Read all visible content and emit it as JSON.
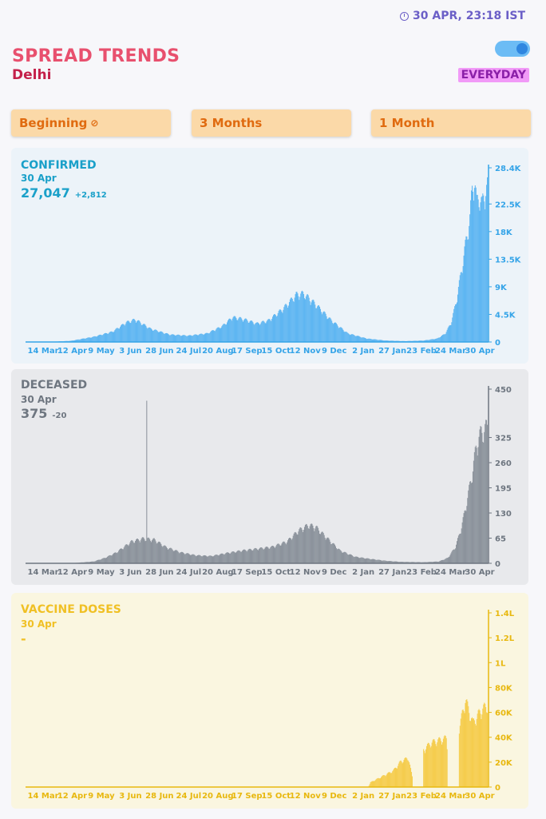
{
  "header": {
    "timestamp": "30 APR, 23:18 IST",
    "title": "SPREAD TRENDS",
    "region": "Delhi",
    "mode_badge": "EVERYDAY"
  },
  "timeframes": [
    {
      "label": "Beginning",
      "selected": true
    },
    {
      "label": "3 Months",
      "selected": false
    },
    {
      "label": "1 Month",
      "selected": false
    }
  ],
  "x_ticks": [
    "14 Mar",
    "12 Apr",
    "9 May",
    "3 Jun",
    "28 Jun",
    "24 Jul",
    "20 Aug",
    "17 Sep",
    "15 Oct",
    "12 Nov",
    "9 Dec",
    "2 Jan",
    "27 Jan",
    "23 Feb",
    "24 Mar",
    "30 Apr"
  ],
  "panels": [
    {
      "key": "confirmed",
      "title": "CONFIRMED",
      "date": "30 Apr",
      "value": "27,047",
      "delta": "+2,812",
      "bg": "#ecf3f9",
      "color": "#5fb6f2",
      "text_color": "#1aa0c9",
      "tick_color": "#35a4e8",
      "y_ticks": [
        [
          "0",
          0
        ],
        [
          "4.5K",
          4500
        ],
        [
          "9K",
          9000
        ],
        [
          "13.5K",
          13500
        ],
        [
          "18K",
          18000
        ],
        [
          "22.5K",
          22500
        ],
        [
          "28.4K",
          28400
        ]
      ],
      "ymax": 28400,
      "keyframes": [
        [
          0,
          0
        ],
        [
          25,
          10
        ],
        [
          55,
          200
        ],
        [
          85,
          900
        ],
        [
          110,
          1800
        ],
        [
          128,
          3400
        ],
        [
          140,
          3900
        ],
        [
          160,
          2300
        ],
        [
          185,
          1300
        ],
        [
          210,
          1100
        ],
        [
          235,
          1500
        ],
        [
          255,
          2800
        ],
        [
          268,
          4300
        ],
        [
          282,
          4000
        ],
        [
          300,
          3200
        ],
        [
          315,
          3700
        ],
        [
          335,
          5800
        ],
        [
          352,
          8200
        ],
        [
          362,
          8400
        ],
        [
          378,
          6500
        ],
        [
          398,
          3800
        ],
        [
          420,
          1500
        ],
        [
          445,
          600
        ],
        [
          470,
          250
        ],
        [
          495,
          150
        ],
        [
          520,
          250
        ],
        [
          538,
          600
        ],
        [
          548,
          1400
        ],
        [
          556,
          3200
        ],
        [
          563,
          7000
        ],
        [
          570,
          12500
        ],
        [
          576,
          17500
        ],
        [
          581,
          21500
        ],
        [
          584,
          26500
        ],
        [
          587,
          28400
        ],
        [
          590,
          24000
        ],
        [
          593,
          25500
        ],
        [
          597,
          23800
        ],
        [
          601,
          26300
        ],
        [
          604,
          27047
        ]
      ]
    },
    {
      "key": "deceased",
      "title": "DECEASED",
      "date": "30 Apr",
      "value": "375",
      "delta": "-20",
      "bg": "#e8e9ec",
      "color": "#8c939c",
      "text_color": "#6e7680",
      "tick_color": "#6e7680",
      "y_ticks": [
        [
          "0",
          0
        ],
        [
          "65",
          65
        ],
        [
          "130",
          130
        ],
        [
          "195",
          195
        ],
        [
          "260",
          260
        ],
        [
          "325",
          325
        ],
        [
          "450",
          450
        ]
      ],
      "ymax": 450,
      "keyframes": [
        [
          0,
          0
        ],
        [
          60,
          1
        ],
        [
          85,
          5
        ],
        [
          100,
          15
        ],
        [
          115,
          30
        ],
        [
          125,
          45
        ],
        [
          135,
          60
        ],
        [
          150,
          68
        ],
        [
          165,
          65
        ],
        [
          180,
          45
        ],
        [
          200,
          30
        ],
        [
          220,
          22
        ],
        [
          240,
          20
        ],
        [
          260,
          28
        ],
        [
          280,
          35
        ],
        [
          300,
          40
        ],
        [
          320,
          45
        ],
        [
          340,
          60
        ],
        [
          355,
          90
        ],
        [
          368,
          105
        ],
        [
          378,
          100
        ],
        [
          390,
          75
        ],
        [
          410,
          35
        ],
        [
          430,
          18
        ],
        [
          450,
          12
        ],
        [
          470,
          7
        ],
        [
          490,
          4
        ],
        [
          520,
          3
        ],
        [
          540,
          5
        ],
        [
          552,
          15
        ],
        [
          562,
          45
        ],
        [
          570,
          100
        ],
        [
          578,
          180
        ],
        [
          585,
          260
        ],
        [
          590,
          330
        ],
        [
          596,
          360
        ],
        [
          604,
          375
        ]
      ],
      "spike": [
        155,
        420
      ]
    },
    {
      "key": "vaccinated",
      "title": "VACCINE DOSES",
      "date": "30 Apr",
      "value": "-",
      "delta": "",
      "bg": "#faf6e0",
      "color": "#f5cd4e",
      "text_color": "#f0c024",
      "tick_color": "#e8b80f",
      "y_ticks": [
        [
          "0",
          0
        ],
        [
          "20K",
          20000
        ],
        [
          "40K",
          40000
        ],
        [
          "60K",
          60000
        ],
        [
          "80K",
          80000
        ],
        [
          "1L",
          100000
        ],
        [
          "1.2L",
          120000
        ],
        [
          "1.4L",
          140000
        ]
      ],
      "ymax": 140000,
      "keyframes": [
        [
          0,
          0
        ],
        [
          447,
          0
        ],
        [
          450,
          4000
        ],
        [
          465,
          9000
        ],
        [
          480,
          14000
        ],
        [
          490,
          22000
        ],
        [
          500,
          25000
        ],
        [
          505,
          9000
        ],
        [
          510,
          0
        ],
        [
          520,
          32000
        ],
        [
          530,
          38000
        ],
        [
          540,
          40000
        ],
        [
          550,
          42000
        ],
        [
          556,
          0
        ],
        [
          567,
          50000
        ],
        [
          575,
          75000
        ],
        [
          585,
          55000
        ],
        [
          595,
          65000
        ],
        [
          604,
          70000
        ]
      ],
      "gaps": [
        [
          506,
          519
        ],
        [
          552,
          566
        ]
      ]
    }
  ]
}
